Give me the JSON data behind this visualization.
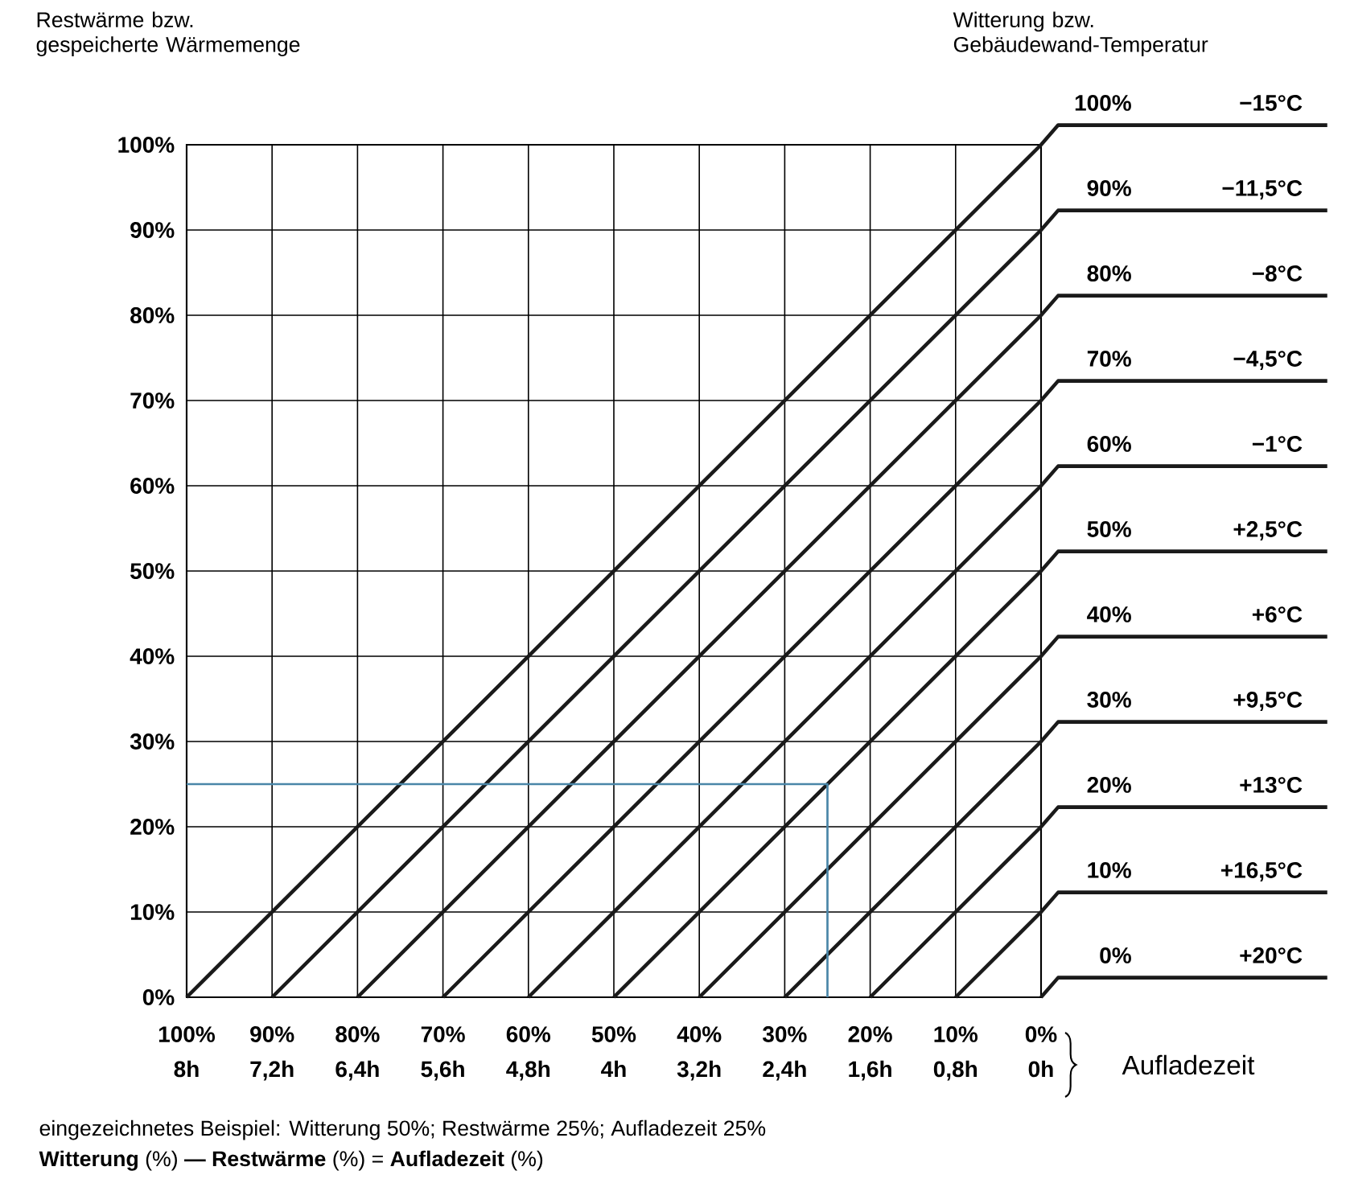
{
  "chart_data": {
    "type": "line",
    "ylabel": "Restwärme bzw. gespeicherte Wärmemenge",
    "legend_title": "Witterung bzw. Gebäudewand-Temperatur",
    "xlabel": "Aufladezeit",
    "xlim": [
      100,
      0
    ],
    "ylim": [
      0,
      100
    ],
    "xticks": [
      {
        "value": 100,
        "label": "100%"
      },
      {
        "value": 90,
        "label": "90%"
      },
      {
        "value": 80,
        "label": "80%"
      },
      {
        "value": 70,
        "label": "70%"
      },
      {
        "value": 60,
        "label": "60%"
      },
      {
        "value": 50,
        "label": "50%"
      },
      {
        "value": 40,
        "label": "40%"
      },
      {
        "value": 30,
        "label": "30%"
      },
      {
        "value": 20,
        "label": "20%"
      },
      {
        "value": 10,
        "label": "10%"
      },
      {
        "value": 0,
        "label": "0%"
      }
    ],
    "x2lim": [
      8,
      0
    ],
    "x2ticks": [
      {
        "value": 8,
        "label": "8h"
      },
      {
        "value": 7.2,
        "label": "7,2h"
      },
      {
        "value": 6.4,
        "label": "6,4h"
      },
      {
        "value": 5.6,
        "label": "5,6h"
      },
      {
        "value": 4.8,
        "label": "4,8h"
      },
      {
        "value": 4,
        "label": "4h"
      },
      {
        "value": 3.2,
        "label": "3,2h"
      },
      {
        "value": 2.4,
        "label": "2,4h"
      },
      {
        "value": 1.6,
        "label": "1,6h"
      },
      {
        "value": 0.8,
        "label": "0,8h"
      },
      {
        "value": 0,
        "label": "0h"
      }
    ],
    "yticks": [
      {
        "value": 0,
        "label": "0%"
      },
      {
        "value": 10,
        "label": "10%"
      },
      {
        "value": 20,
        "label": "20%"
      },
      {
        "value": 30,
        "label": "30%"
      },
      {
        "value": 40,
        "label": "40%"
      },
      {
        "value": 50,
        "label": "50%"
      },
      {
        "value": 60,
        "label": "60%"
      },
      {
        "value": 70,
        "label": "70%"
      },
      {
        "value": 80,
        "label": "80%"
      },
      {
        "value": 90,
        "label": "90%"
      },
      {
        "value": 100,
        "label": "100%"
      }
    ],
    "grid": true,
    "series": [
      {
        "name": "100%",
        "color": "#1a1a1a",
        "x": [
          100,
          0
        ],
        "values": [
          0,
          100
        ]
      },
      {
        "name": "90%",
        "color": "#1a1a1a",
        "x": [
          90,
          0
        ],
        "values": [
          0,
          90
        ]
      },
      {
        "name": "80%",
        "color": "#1a1a1a",
        "x": [
          80,
          0
        ],
        "values": [
          0,
          80
        ]
      },
      {
        "name": "70%",
        "color": "#1a1a1a",
        "x": [
          70,
          0
        ],
        "values": [
          0,
          70
        ]
      },
      {
        "name": "60%",
        "color": "#1a1a1a",
        "x": [
          60,
          0
        ],
        "values": [
          0,
          60
        ]
      },
      {
        "name": "50%",
        "color": "#1a1a1a",
        "x": [
          50,
          0
        ],
        "values": [
          0,
          50
        ]
      },
      {
        "name": "40%",
        "color": "#1a1a1a",
        "x": [
          40,
          0
        ],
        "values": [
          0,
          40
        ]
      },
      {
        "name": "30%",
        "color": "#1a1a1a",
        "x": [
          30,
          0
        ],
        "values": [
          0,
          30
        ]
      },
      {
        "name": "20%",
        "color": "#1a1a1a",
        "x": [
          20,
          0
        ],
        "values": [
          0,
          20
        ]
      },
      {
        "name": "10%",
        "color": "#1a1a1a",
        "x": [
          10,
          0
        ],
        "values": [
          0,
          10
        ]
      },
      {
        "name": "0%",
        "color": "#1a1a1a",
        "x": [
          0,
          0
        ],
        "values": [
          0,
          0
        ]
      },
      {
        "color": "#4a86a8",
        "x": [
          100,
          25,
          25
        ],
        "values": [
          25,
          25,
          0
        ]
      }
    ],
    "annotations": [
      "−15°C",
      "−11,5°C",
      "−8°C",
      "−4,5°C",
      "−1°C",
      "+2,5°C",
      "+6°C",
      "+9,5°C",
      "+13°C",
      "+16,5°C",
      "+20°C",
      "eingezeichnetes Beispiel: Witterung 50%; Restwärme 25%; Aufladezeit 25%",
      "**Witterung** (%) **— Restwärme** (%) = **Aufladezeit** (%)"
    ]
  }
}
